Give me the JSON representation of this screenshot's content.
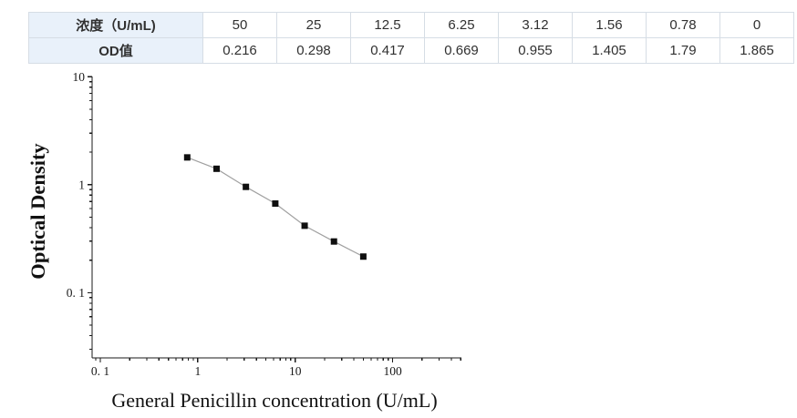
{
  "table": {
    "rows": [
      {
        "label": "浓度（U/mL)",
        "values": [
          "50",
          "25",
          "12.5",
          "6.25",
          "3.12",
          "1.56",
          "0.78",
          "0"
        ]
      },
      {
        "label": "OD值",
        "values": [
          "0.216",
          "0.298",
          "0.417",
          "0.669",
          "0.955",
          "1.405",
          "1.79",
          "1.865"
        ]
      }
    ]
  },
  "chart_data": {
    "type": "line",
    "title": "",
    "xlabel": "General Penicillin concentration (U/mL)",
    "ylabel": "Optical Density",
    "x_scale": "log",
    "y_scale": "log",
    "x": [
      0.78,
      1.56,
      3.12,
      6.25,
      12.5,
      25,
      50
    ],
    "y": [
      1.79,
      1.405,
      0.955,
      0.669,
      0.417,
      0.298,
      0.216
    ],
    "xlim": [
      0.0824,
      508
    ],
    "ylim": [
      0.0249,
      10.05
    ],
    "x_tick_values": [
      0.1,
      1,
      10,
      100
    ],
    "x_tick_labels": [
      "0. 1",
      "1",
      "10",
      "100"
    ],
    "y_tick_values": [
      0.1,
      1,
      10
    ],
    "y_tick_labels": [
      "0. 1",
      "1",
      "10"
    ],
    "grid": false,
    "legend": "none",
    "marker": "square"
  },
  "colors": {
    "table_header_bg": "#e9f1fa",
    "table_border": "#d6dde5",
    "axis": "#1a1a1a",
    "series_line": "#a0a0a0",
    "marker_fill": "#0f0f0f"
  }
}
